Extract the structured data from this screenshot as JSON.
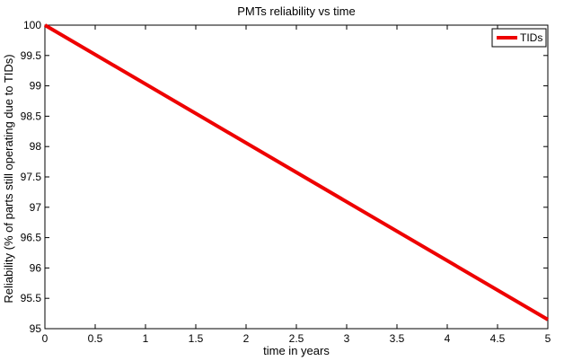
{
  "chart_data": {
    "type": "line",
    "title": "PMTs reliability vs time",
    "xlabel": "time in years",
    "ylabel": "Reliability (% of parts still operating due to TIDs)",
    "xlim": [
      0,
      5
    ],
    "ylim": [
      95,
      100
    ],
    "x_ticks": [
      "0",
      "0.5",
      "1",
      "1.5",
      "2",
      "2.5",
      "3",
      "3.5",
      "4",
      "4.5",
      "5"
    ],
    "y_ticks": [
      "95",
      "95.5",
      "96",
      "96.5",
      "97",
      "97.5",
      "98",
      "98.5",
      "99",
      "99.5",
      "100"
    ],
    "grid": false,
    "legend": "top-right",
    "series": [
      {
        "name": "TIDs",
        "color": "#ee0000",
        "x": [
          0,
          5
        ],
        "y": [
          100,
          95.15
        ]
      }
    ]
  }
}
